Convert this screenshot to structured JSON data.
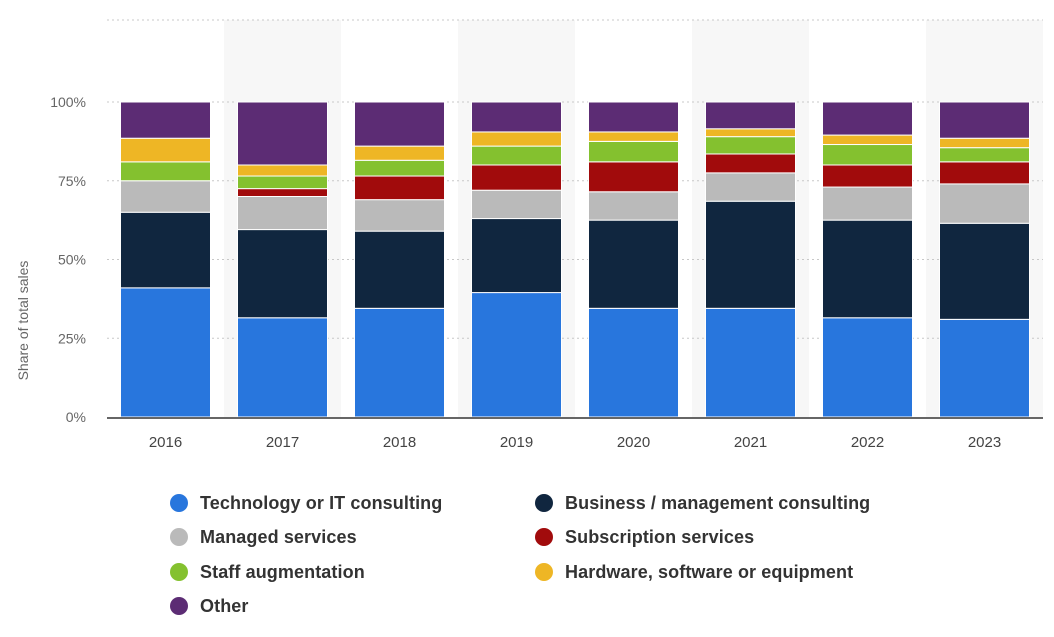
{
  "chart_data": {
    "type": "stacked-bar",
    "title": "",
    "xlabel": "",
    "ylabel": "Share of total sales",
    "ylim": [
      0,
      100
    ],
    "yticks": [
      0,
      25,
      50,
      75,
      100
    ],
    "ytick_labels": [
      "0%",
      "25%",
      "50%",
      "75%",
      "100%"
    ],
    "grid": true,
    "legend_position": "bottom",
    "categories": [
      "2016",
      "2017",
      "2018",
      "2019",
      "2020",
      "2021",
      "2022",
      "2023"
    ],
    "series": [
      {
        "name": "Technology or IT consulting",
        "color": "#2876DD",
        "values": [
          41,
          31.5,
          34.5,
          39.5,
          34.5,
          34.5,
          31.5,
          31
        ]
      },
      {
        "name": "Business / management consulting",
        "color": "#10263F",
        "values": [
          24,
          28,
          24.5,
          23.5,
          28,
          34,
          31,
          30.5
        ]
      },
      {
        "name": "Managed services",
        "color": "#BABABA",
        "values": [
          10,
          10.5,
          10,
          9,
          9,
          9,
          10.5,
          12.5
        ]
      },
      {
        "name": "Subscription services",
        "color": "#A10B0C",
        "values": [
          0,
          2.5,
          7.5,
          8,
          9.5,
          6,
          7,
          7
        ]
      },
      {
        "name": "Staff augmentation",
        "color": "#84C12F",
        "values": [
          6,
          4,
          5,
          6,
          6.5,
          5.5,
          6.5,
          4.5
        ]
      },
      {
        "name": "Hardware, software or equipment",
        "color": "#EEB625",
        "values": [
          7.5,
          3.5,
          4.5,
          4.5,
          3,
          2.5,
          3,
          3
        ]
      },
      {
        "name": "Other",
        "color": "#5C2C74",
        "values": [
          11.5,
          20,
          14,
          9.5,
          9.5,
          8.5,
          10.5,
          11.5
        ]
      }
    ]
  }
}
